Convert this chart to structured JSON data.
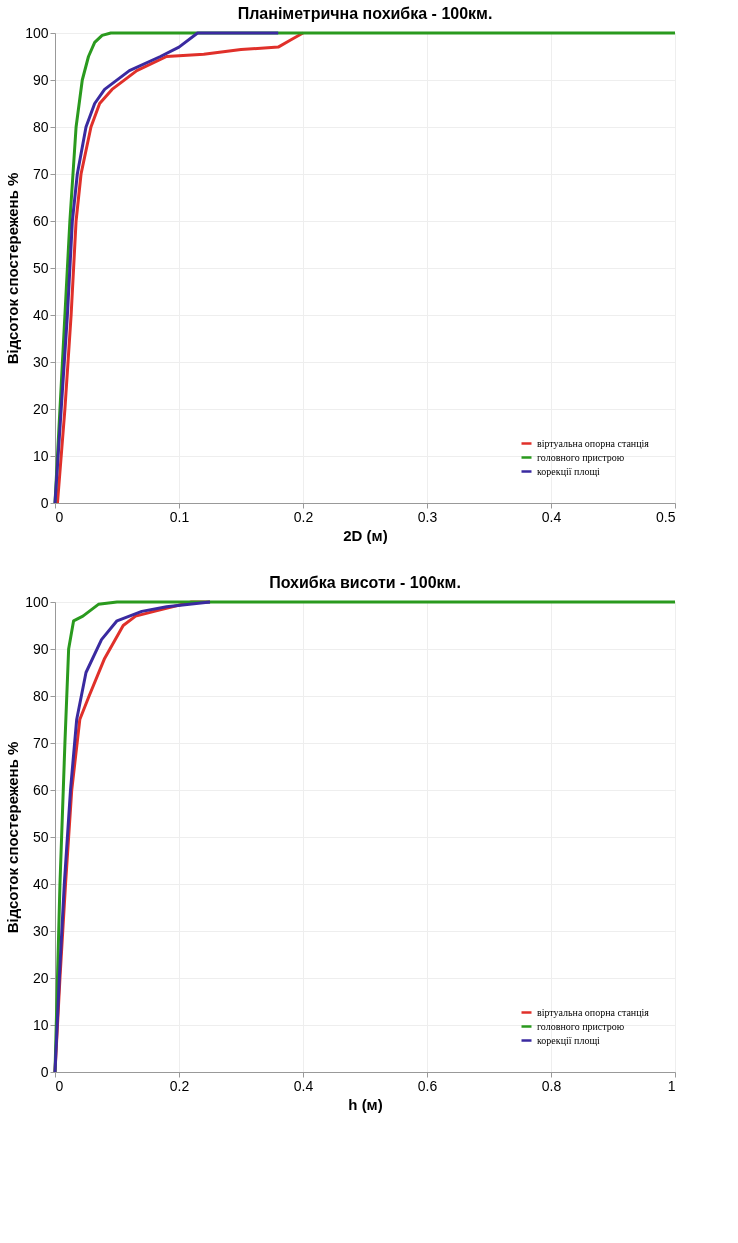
{
  "chart_data": [
    {
      "type": "line",
      "title": "Планіметрична похибка - 100км.",
      "xlabel": "2D (м)",
      "ylabel": "Відсоток спостережень %",
      "xlim": [
        0,
        0.5
      ],
      "ylim": [
        0,
        100
      ],
      "xticks": [
        0,
        0.1,
        0.2,
        0.3,
        0.4,
        0.5
      ],
      "yticks": [
        0,
        10,
        20,
        30,
        40,
        50,
        60,
        70,
        80,
        90,
        100
      ],
      "grid": true,
      "legend": "bottom right",
      "line_style": "solid",
      "series": [
        {
          "name": "віртуальна опорна станція",
          "color": "#e0302a",
          "x": [
            0.002,
            0.008,
            0.013,
            0.017,
            0.021,
            0.029,
            0.036,
            0.046,
            0.066,
            0.09,
            0.12,
            0.15,
            0.18,
            0.19,
            0.2
          ],
          "values": [
            0,
            20,
            40,
            60,
            70,
            80,
            85,
            88,
            92,
            95,
            95.5,
            96.5,
            97,
            98.5,
            100
          ]
        },
        {
          "name": "головного пристрою",
          "color": "#2a9a1e",
          "x": [
            0,
            0.005,
            0.009,
            0.012,
            0.017,
            0.022,
            0.027,
            0.032,
            0.038,
            0.045,
            0.1,
            0.5
          ],
          "values": [
            0,
            25,
            45,
            60,
            80,
            90,
            95,
            98,
            99.5,
            100,
            100,
            100
          ]
        },
        {
          "name": "корекції площі",
          "color": "#3a2aa0",
          "x": [
            0,
            0.005,
            0.01,
            0.014,
            0.018,
            0.025,
            0.032,
            0.04,
            0.06,
            0.085,
            0.1,
            0.115,
            0.18
          ],
          "values": [
            0,
            20,
            40,
            60,
            70,
            80,
            85,
            88,
            92,
            95,
            97,
            100,
            100
          ]
        }
      ]
    },
    {
      "type": "line",
      "title": "Похибка висоти - 100км.",
      "xlabel": "h (м)",
      "ylabel": "Відсоток спостережень %",
      "xlim": [
        0,
        1
      ],
      "ylim": [
        0,
        100
      ],
      "xticks": [
        0,
        0.2,
        0.4,
        0.6,
        0.8,
        1
      ],
      "yticks": [
        0,
        10,
        20,
        30,
        40,
        50,
        60,
        70,
        80,
        90,
        100
      ],
      "grid": true,
      "legend": "bottom right",
      "line_style": "solid",
      "series": [
        {
          "name": "віртуальна опорна станція",
          "color": "#e0302a",
          "x": [
            0,
            0.008,
            0.017,
            0.027,
            0.04,
            0.055,
            0.08,
            0.11,
            0.13,
            0.16,
            0.22,
            0.25
          ],
          "values": [
            0,
            20,
            40,
            60,
            75,
            80,
            88,
            95,
            97,
            98,
            100,
            100
          ]
        },
        {
          "name": "головного пристрою",
          "color": "#2a9a1e",
          "x": [
            0,
            0.004,
            0.008,
            0.016,
            0.022,
            0.03,
            0.045,
            0.07,
            0.1,
            0.5,
            1
          ],
          "values": [
            0,
            20,
            40,
            70,
            90,
            96,
            97,
            99.5,
            100,
            100,
            100
          ]
        },
        {
          "name": "корекції площі",
          "color": "#3a2aa0",
          "x": [
            0,
            0.007,
            0.015,
            0.025,
            0.035,
            0.05,
            0.075,
            0.1,
            0.14,
            0.18,
            0.25
          ],
          "values": [
            0,
            20,
            40,
            60,
            75,
            85,
            92,
            96,
            98,
            99,
            100
          ]
        }
      ]
    }
  ]
}
